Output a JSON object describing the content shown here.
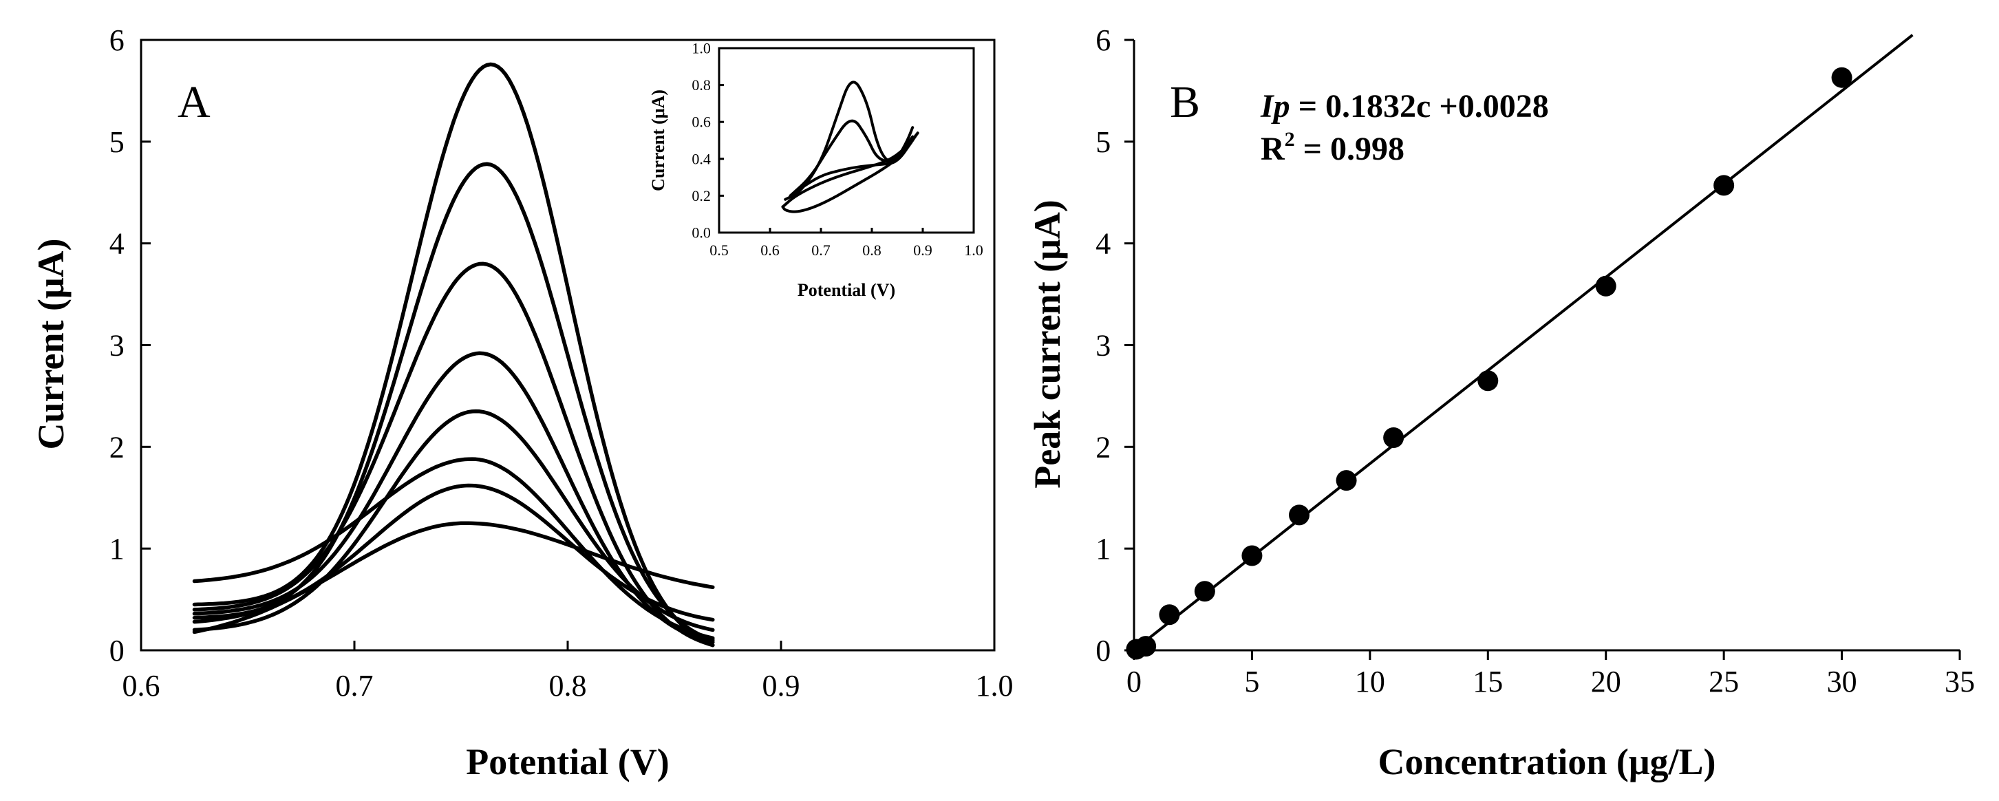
{
  "chart_data": [
    {
      "id": "A",
      "type": "line",
      "panel_label": "A",
      "xlabel": "Potential (V)",
      "ylabel": "Current (μA)",
      "xlim": [
        0.6,
        1.0
      ],
      "ylim": [
        0,
        6
      ],
      "xticks": [
        "0.6",
        "0.7",
        "0.8",
        "0.9",
        "1.0"
      ],
      "yticks": [
        "0",
        "1",
        "2",
        "3",
        "4",
        "5",
        "6"
      ],
      "series": [
        {
          "name": "curve-1",
          "peak_x": 0.752,
          "peak_y": 1.25,
          "width": 0.058,
          "left_x": 0.625,
          "left_y": 0.18,
          "right_x": 0.868,
          "right_y": 0.62
        },
        {
          "name": "curve-2",
          "peak_x": 0.754,
          "peak_y": 1.62,
          "width": 0.046,
          "left_x": 0.625,
          "left_y": 0.28,
          "right_x": 0.868,
          "right_y": 0.3
        },
        {
          "name": "curve-3",
          "peak_x": 0.755,
          "peak_y": 1.88,
          "width": 0.046,
          "left_x": 0.625,
          "left_y": 0.68,
          "right_x": 0.868,
          "right_y": 0.12
        },
        {
          "name": "curve-4",
          "peak_x": 0.757,
          "peak_y": 2.35,
          "width": 0.042,
          "left_x": 0.625,
          "left_y": 0.2,
          "right_x": 0.868,
          "right_y": 0.2
        },
        {
          "name": "curve-5",
          "peak_x": 0.759,
          "peak_y": 2.92,
          "width": 0.04,
          "left_x": 0.625,
          "left_y": 0.36,
          "right_x": 0.868,
          "right_y": 0.08
        },
        {
          "name": "curve-6",
          "peak_x": 0.76,
          "peak_y": 3.8,
          "width": 0.039,
          "left_x": 0.625,
          "left_y": 0.4,
          "right_x": 0.868,
          "right_y": 0.05
        },
        {
          "name": "curve-7",
          "peak_x": 0.762,
          "peak_y": 4.78,
          "width": 0.038,
          "left_x": 0.625,
          "left_y": 0.32,
          "right_x": 0.868,
          "right_y": 0.1
        },
        {
          "name": "curve-8",
          "peak_x": 0.764,
          "peak_y": 5.76,
          "width": 0.037,
          "left_x": 0.625,
          "left_y": 0.45,
          "right_x": 0.868,
          "right_y": 0.05
        }
      ]
    },
    {
      "id": "A-inset",
      "type": "line",
      "xlabel": "Potential (V)",
      "ylabel": "Current (μA)",
      "xlim": [
        0.5,
        1.0
      ],
      "ylim": [
        0,
        1.0
      ],
      "xticks": [
        "0.5",
        "0.6",
        "0.7",
        "0.8",
        "0.9",
        "1.0"
      ],
      "yticks": [
        "0.0",
        "0.2",
        "0.4",
        "0.6",
        "0.8",
        "1.0"
      ],
      "series": [
        {
          "name": "cv-blank-forward",
          "x": [
            0.625,
            0.65,
            0.7,
            0.75,
            0.8,
            0.84,
            0.87,
            0.89
          ],
          "y": [
            0.14,
            0.2,
            0.27,
            0.32,
            0.36,
            0.4,
            0.47,
            0.54
          ]
        },
        {
          "name": "cv-blank-reverse",
          "x": [
            0.89,
            0.86,
            0.82,
            0.77,
            0.72,
            0.68,
            0.65,
            0.63,
            0.625
          ],
          "y": [
            0.54,
            0.42,
            0.34,
            0.26,
            0.18,
            0.13,
            0.11,
            0.12,
            0.14
          ]
        },
        {
          "name": "cv-sample-forward",
          "x": [
            0.63,
            0.66,
            0.7,
            0.73,
            0.76,
            0.79,
            0.81,
            0.83,
            0.85,
            0.87,
            0.88
          ],
          "y": [
            0.18,
            0.22,
            0.38,
            0.62,
            0.86,
            0.72,
            0.48,
            0.38,
            0.4,
            0.5,
            0.57
          ]
        },
        {
          "name": "cv-sample-2",
          "x": [
            0.64,
            0.68,
            0.72,
            0.76,
            0.79,
            0.81,
            0.84,
            0.86,
            0.88
          ],
          "y": [
            0.2,
            0.3,
            0.48,
            0.64,
            0.52,
            0.4,
            0.38,
            0.44,
            0.52
          ]
        },
        {
          "name": "cv-sample-reverse",
          "x": [
            0.88,
            0.85,
            0.82,
            0.78,
            0.74,
            0.7,
            0.66,
            0.64
          ],
          "y": [
            0.5,
            0.38,
            0.37,
            0.36,
            0.34,
            0.31,
            0.24,
            0.2
          ]
        }
      ]
    },
    {
      "id": "B",
      "type": "scatter",
      "panel_label": "B",
      "xlabel": "Concentration (μg/L)",
      "ylabel": "Peak current (μA)",
      "xlim": [
        0,
        35
      ],
      "ylim": [
        0,
        6
      ],
      "xticks": [
        "0",
        "5",
        "10",
        "15",
        "20",
        "25",
        "30",
        "35"
      ],
      "yticks": [
        "0",
        "1",
        "2",
        "3",
        "4",
        "5",
        "6"
      ],
      "x": [
        0.1,
        0.5,
        1.5,
        3,
        5,
        7,
        9,
        11,
        15,
        20,
        25,
        30
      ],
      "y": [
        0.01,
        0.04,
        0.35,
        0.58,
        0.93,
        1.33,
        1.67,
        2.09,
        2.65,
        3.58,
        4.57,
        5.63
      ],
      "fit": {
        "slope": 0.1832,
        "intercept": 0.0028,
        "x_range": [
          0,
          33
        ]
      },
      "equation": {
        "var": "Ip",
        "rhs": " = 0.1832c +0.0028",
        "r2_label": "R",
        "r2_sup": "2",
        "r2_value": " = 0.998"
      }
    }
  ]
}
